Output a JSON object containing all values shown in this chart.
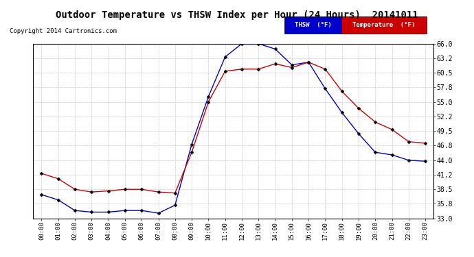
{
  "title": "Outdoor Temperature vs THSW Index per Hour (24 Hours)  20141011",
  "copyright": "Copyright 2014 Cartronics.com",
  "hours": [
    "00:00",
    "01:00",
    "02:00",
    "03:00",
    "04:00",
    "05:00",
    "06:00",
    "07:00",
    "08:00",
    "09:00",
    "10:00",
    "11:00",
    "12:00",
    "13:00",
    "14:00",
    "15:00",
    "16:00",
    "17:00",
    "18:00",
    "19:00",
    "20:00",
    "21:00",
    "22:00",
    "23:00"
  ],
  "thsw": [
    37.5,
    36.5,
    34.5,
    34.2,
    34.2,
    34.5,
    34.5,
    34.0,
    35.5,
    47.0,
    56.0,
    63.5,
    66.0,
    66.0,
    65.0,
    62.0,
    62.5,
    57.5,
    53.0,
    49.0,
    45.5,
    45.0,
    44.0,
    43.8
  ],
  "temp": [
    41.5,
    40.5,
    38.5,
    38.0,
    38.2,
    38.5,
    38.5,
    38.0,
    37.8,
    45.5,
    55.0,
    60.8,
    61.2,
    61.2,
    62.2,
    61.5,
    62.5,
    61.2,
    57.0,
    53.8,
    51.2,
    49.8,
    47.5,
    47.2
  ],
  "thsw_color": "#0000cc",
  "temp_color": "#cc0000",
  "background_color": "#ffffff",
  "grid_color": "#bbbbbb",
  "ylim_min": 33.0,
  "ylim_max": 66.0,
  "yticks": [
    33.0,
    35.8,
    38.5,
    41.2,
    44.0,
    46.8,
    49.5,
    52.2,
    55.0,
    57.8,
    60.5,
    63.2,
    66.0
  ],
  "legend_thsw_bg": "#0000cc",
  "legend_temp_bg": "#cc0000"
}
